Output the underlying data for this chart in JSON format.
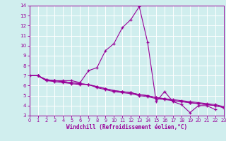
{
  "title": "",
  "xlabel": "Windchill (Refroidissement éolien,°C)",
  "ylabel": "",
  "bg_color": "#d0eeee",
  "grid_color": "#c0d8d8",
  "line_color": "#990099",
  "xlim": [
    0,
    23
  ],
  "ylim": [
    3,
    14
  ],
  "xticks": [
    0,
    1,
    2,
    3,
    4,
    5,
    6,
    7,
    8,
    9,
    10,
    11,
    12,
    13,
    14,
    15,
    16,
    17,
    18,
    19,
    20,
    21,
    22,
    23
  ],
  "yticks": [
    3,
    4,
    5,
    6,
    7,
    8,
    9,
    10,
    11,
    12,
    13,
    14
  ],
  "lines": [
    {
      "x": [
        0,
        1,
        2,
        3,
        4,
        5,
        6,
        7,
        8,
        9,
        10,
        11,
        12,
        13,
        14,
        15,
        16,
        17,
        18,
        19,
        20,
        21,
        22
      ],
      "y": [
        7.0,
        7.0,
        6.5,
        6.5,
        6.5,
        6.5,
        6.3,
        7.5,
        7.8,
        9.5,
        10.2,
        11.8,
        12.6,
        13.9,
        10.3,
        4.4,
        5.4,
        4.4,
        4.1,
        3.3,
        4.0,
        4.0,
        3.6
      ]
    },
    {
      "x": [
        0,
        1,
        2,
        3,
        4,
        5,
        6,
        7,
        8,
        9,
        10,
        11,
        12,
        13,
        14,
        15,
        16,
        17,
        18,
        19,
        20,
        21,
        22,
        23
      ],
      "y": [
        7.0,
        7.0,
        6.5,
        6.4,
        6.3,
        6.2,
        6.1,
        6.1,
        5.8,
        5.6,
        5.4,
        5.3,
        5.2,
        5.0,
        4.9,
        4.7,
        4.6,
        4.5,
        4.4,
        4.3,
        4.2,
        4.1,
        4.0,
        3.8
      ]
    },
    {
      "x": [
        0,
        1,
        2,
        3,
        4,
        5,
        6,
        7,
        8,
        9,
        10,
        11,
        12,
        13,
        14,
        15,
        16,
        17,
        18,
        19,
        20,
        21,
        22,
        23
      ],
      "y": [
        7.0,
        7.0,
        6.6,
        6.5,
        6.4,
        6.3,
        6.2,
        6.1,
        5.9,
        5.7,
        5.5,
        5.4,
        5.3,
        5.1,
        5.0,
        4.8,
        4.7,
        4.6,
        4.5,
        4.4,
        4.3,
        4.2,
        4.1,
        3.9
      ]
    },
    {
      "x": [
        0,
        1,
        2,
        3,
        4,
        5,
        6,
        7,
        8,
        9,
        10,
        11,
        12,
        13,
        14,
        15,
        16,
        17,
        18,
        19,
        20,
        21,
        22,
        23
      ],
      "y": [
        7.0,
        7.0,
        6.6,
        6.5,
        6.4,
        6.3,
        6.2,
        6.1,
        5.9,
        5.7,
        5.5,
        5.4,
        5.3,
        5.1,
        5.0,
        4.8,
        4.7,
        4.5,
        4.4,
        4.3,
        4.2,
        4.1,
        4.0,
        3.8
      ]
    }
  ]
}
